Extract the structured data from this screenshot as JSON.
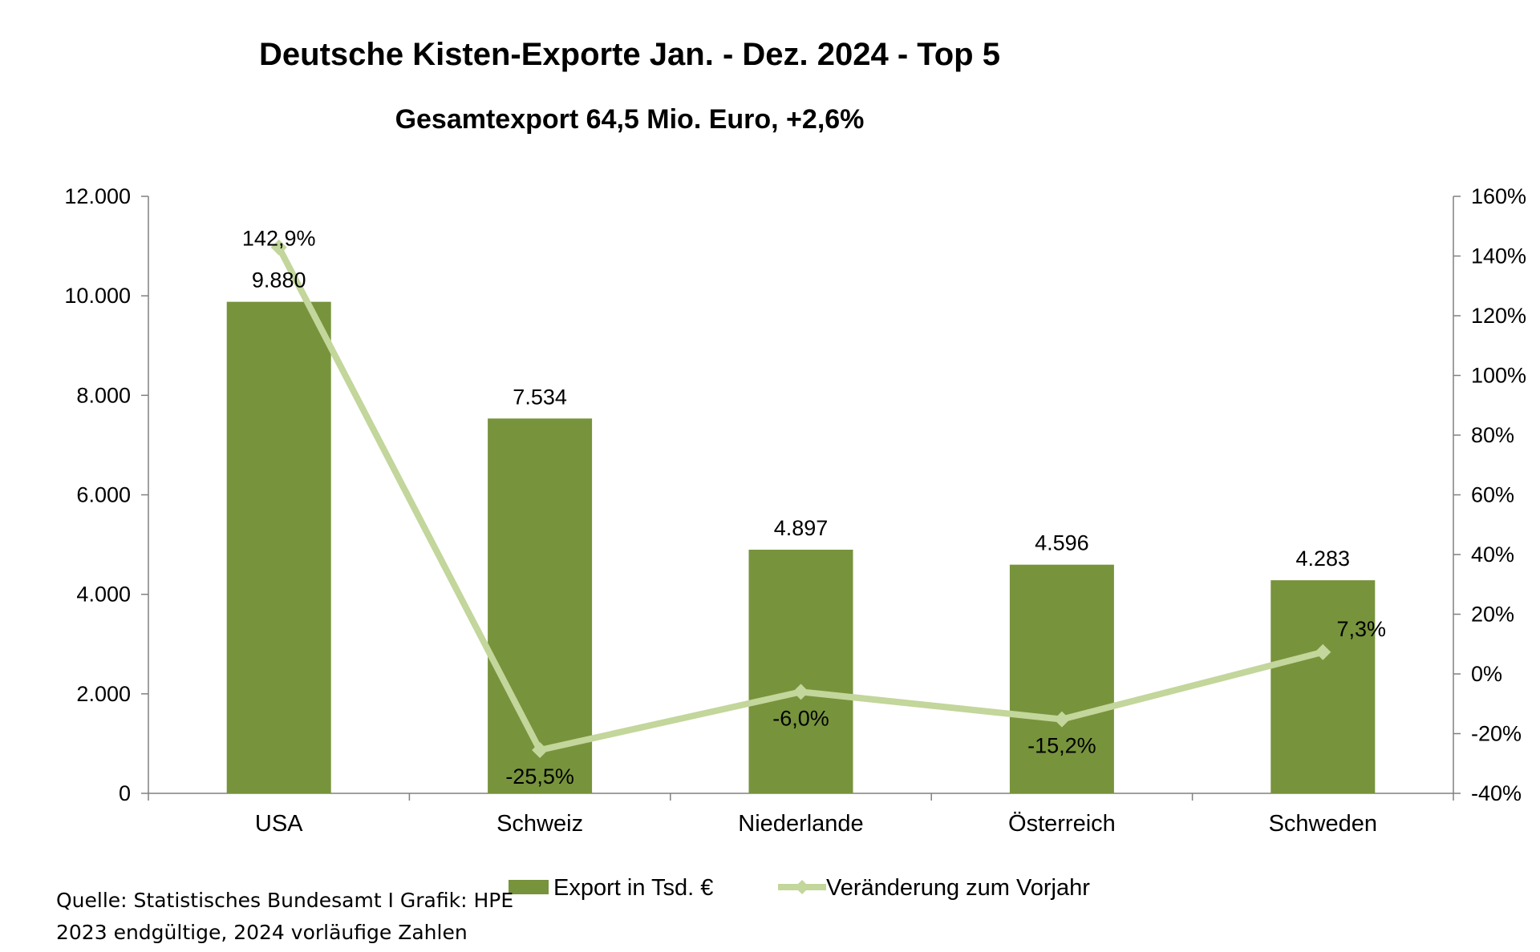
{
  "chart_data": {
    "type": "bar",
    "title": "Deutsche Kisten-Exporte Jan. - Dez. 2024 - Top 5",
    "subtitle": "Gesamtexport 64,5 Mio. Euro, +2,6%",
    "categories": [
      "USA",
      "Schweiz",
      "Niederlande",
      "Österreich",
      "Schweden"
    ],
    "series": [
      {
        "name": "Export in Tsd. €",
        "type": "bar",
        "axis": "left",
        "color": "#77933C",
        "values": [
          9880,
          7534,
          4897,
          4596,
          4283
        ],
        "labels": [
          "9.880",
          "7.534",
          "4.897",
          "4.596",
          "4.283"
        ]
      },
      {
        "name": "Veränderung zum Vorjahr",
        "type": "line",
        "axis": "right",
        "color": "#C3D69B",
        "marker": "diamond",
        "values": [
          142.9,
          -25.5,
          -6.0,
          -15.2,
          7.3
        ],
        "labels": [
          "142,9%",
          "-25,5%",
          "-6,0%",
          "-15,2%",
          "7,3%"
        ]
      }
    ],
    "y_left": {
      "ylim": [
        0,
        12000
      ],
      "ticks": [
        0,
        2000,
        4000,
        6000,
        8000,
        10000,
        12000
      ],
      "tick_labels": [
        "0",
        "2.000",
        "4.000",
        "6.000",
        "8.000",
        "10.000",
        "12.000"
      ]
    },
    "y_right": {
      "ylim": [
        -40,
        160
      ],
      "ticks": [
        -40,
        -20,
        0,
        20,
        40,
        60,
        80,
        100,
        120,
        140,
        160
      ],
      "tick_labels": [
        "-40%",
        "-20%",
        "0%",
        "20%",
        "40%",
        "60%",
        "80%",
        "100%",
        "120%",
        "140%",
        "160%"
      ]
    },
    "grid": false,
    "legend_placement": "bottom"
  },
  "source_note": {
    "line1": "Quelle: Statistisches Bundesamt I Grafik: HPE",
    "line2": "2023 endgültige, 2024 vorläufige Zahlen"
  }
}
